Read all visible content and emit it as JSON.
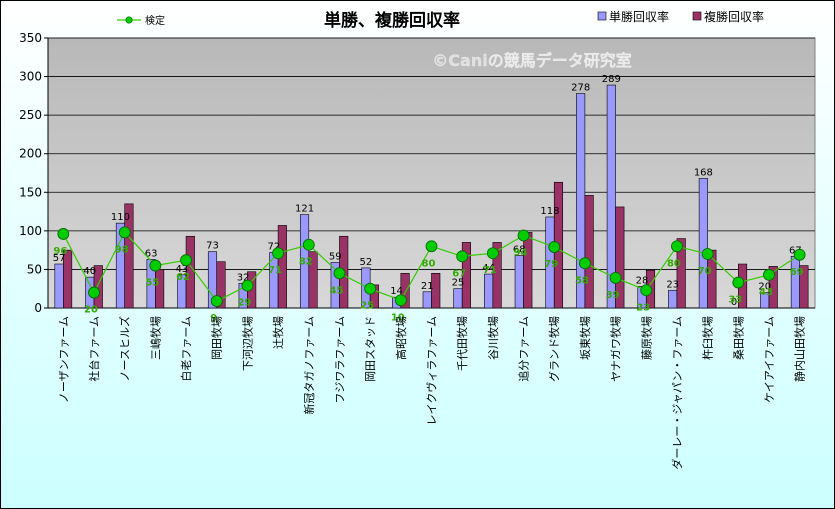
{
  "chart_data": {
    "type": "bar",
    "title": "単勝、複勝回収率",
    "watermark": "©Caniの競馬データ研究室",
    "categories": [
      "ノーザンファーム",
      "社台ファーム",
      "ノースヒルズ",
      "三嶋牧場",
      "白老ファーム",
      "岡田牧場",
      "下河辺牧場",
      "辻牧場",
      "新冠タガノファーム",
      "フジワラファーム",
      "岡田スタッド",
      "高昭牧場",
      "レイクヴィラファーム",
      "千代田牧場",
      "谷川牧場",
      "追分ファーム",
      "グランド牧場",
      "坂東牧場",
      "ヤナガワ牧場",
      "藤原牧場",
      "ダーレー・ジャパン・ファーム",
      "杵臼牧場",
      "桑田牧場",
      "ケイアイファーム",
      "静内山田牧場"
    ],
    "series": [
      {
        "name": "単勝回収率",
        "color": "#9999ff",
        "values": [
          57,
          40,
          110,
          63,
          43,
          73,
          32,
          72,
          121,
          59,
          52,
          14,
          21,
          25,
          44,
          68,
          118,
          278,
          289,
          28,
          23,
          168,
          0,
          20,
          67
        ]
      },
      {
        "name": "複勝回収率",
        "color": "#993366",
        "values": [
          75,
          55,
          135,
          50,
          93,
          60,
          47,
          107,
          73,
          93,
          30,
          45,
          45,
          85,
          85,
          98,
          163,
          146,
          131,
          49,
          90,
          75,
          57,
          54,
          55
        ]
      }
    ],
    "line_series": {
      "name": "検定",
      "color": "#33cc00",
      "marker_color": "#00cc00",
      "label_color": "#33aa00",
      "values": [
        96,
        20,
        98,
        55,
        62,
        9,
        29,
        71,
        82,
        45,
        25,
        10,
        80,
        67,
        71,
        94,
        79,
        58,
        39,
        23,
        80,
        70,
        33,
        43,
        69
      ]
    },
    "ylim": [
      0,
      350
    ],
    "yticks": [
      0,
      50,
      100,
      150,
      200,
      250,
      300,
      350
    ],
    "grid": true,
    "legend": "top",
    "colors": {
      "plot_bg": "#c0c0c0",
      "page_bg": "#ccffff",
      "title": "#000000"
    }
  }
}
